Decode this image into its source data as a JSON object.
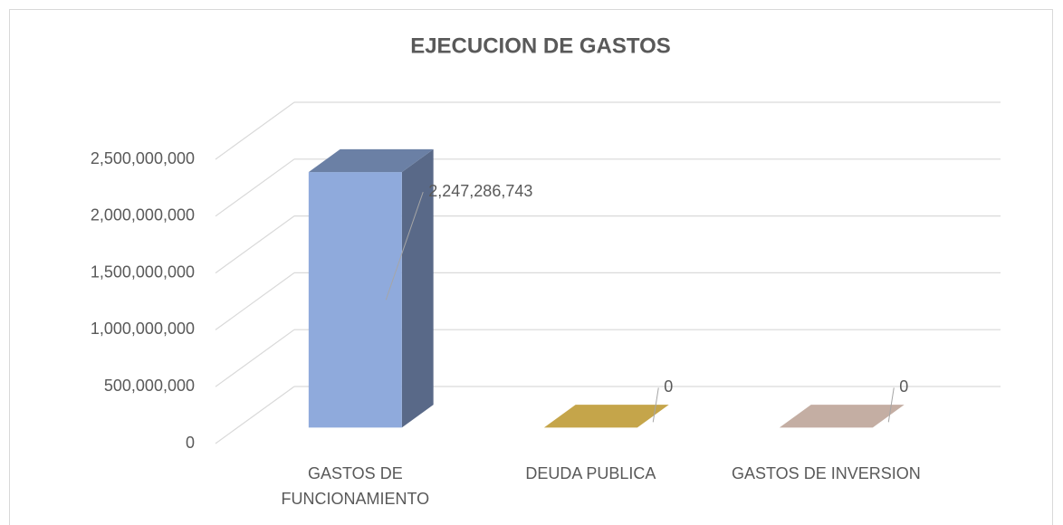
{
  "chart_data": {
    "type": "bar3d",
    "title": "EJECUCION DE GASTOS",
    "categories": [
      "GASTOS DE FUNCIONAMIENTO",
      "DEUDA PUBLICA",
      "GASTOS DE INVERSION"
    ],
    "values": [
      2247286743,
      0,
      0
    ],
    "value_labels": [
      "2,247,286,743",
      "0",
      "0"
    ],
    "colors": [
      "#8faadc",
      "#c5a54a",
      "#c4aea3"
    ],
    "ylim": [
      0,
      2500000000
    ],
    "yticks": [
      0,
      {
        "value": 500000000,
        "label": "500,000,000"
      },
      {
        "value": 1000000000,
        "label": "1,000,000,000"
      },
      {
        "value": 1500000000,
        "label": "1,500,000,000"
      },
      {
        "value": 2000000000,
        "label": "2,000,000,000"
      },
      {
        "value": 2500000000,
        "label": "2,500,000,000"
      }
    ],
    "grid": true
  }
}
